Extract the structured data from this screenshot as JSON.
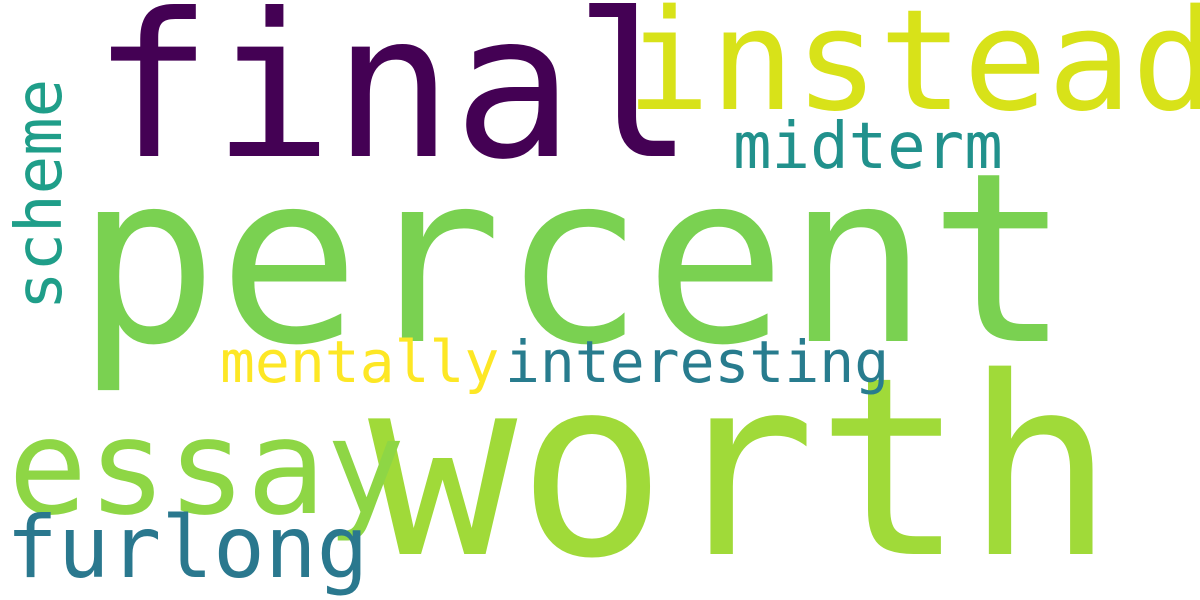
{
  "words": [
    {
      "id": "final",
      "text": "final",
      "color": "#440154"
    },
    {
      "id": "percent",
      "text": "percent",
      "color": "#7ad151"
    },
    {
      "id": "worth",
      "text": "worth",
      "color": "#a0da39"
    },
    {
      "id": "instead",
      "text": "instead",
      "color": "#d8e219"
    },
    {
      "id": "essay",
      "text": "essay",
      "color": "#8ed645"
    },
    {
      "id": "midterm",
      "text": "midterm",
      "color": "#21918c"
    },
    {
      "id": "scheme",
      "text": "scheme",
      "color": "#1f9e89"
    },
    {
      "id": "mentally",
      "text": "mentally",
      "color": "#fde725"
    },
    {
      "id": "interesting",
      "text": "interesting",
      "color": "#287c8e"
    },
    {
      "id": "furlong",
      "text": "furlong",
      "color": "#2a788e"
    }
  ]
}
